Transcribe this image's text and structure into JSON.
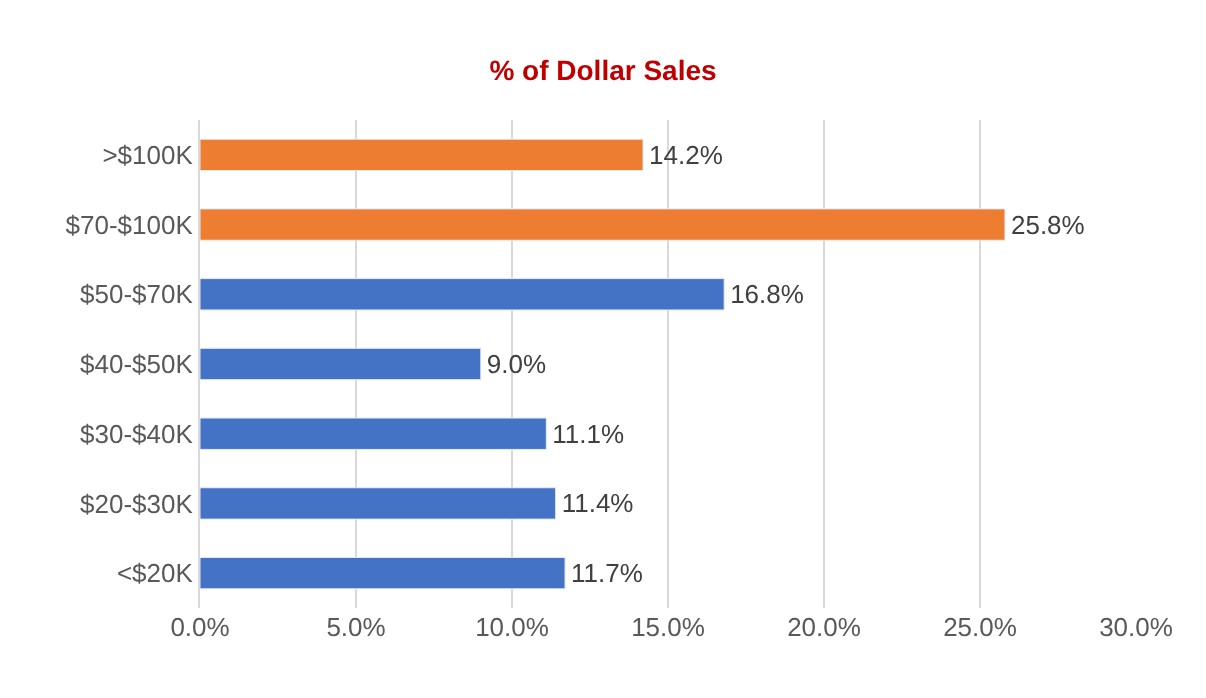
{
  "chart_data": {
    "type": "bar",
    "orientation": "horizontal",
    "title": "% of Dollar Sales",
    "categories": [
      ">$100K",
      "$70-$100K",
      "$50-$70K",
      "$40-$50K",
      "$30-$40K",
      "$20-$30K",
      "<$20K"
    ],
    "values": [
      14.2,
      25.8,
      16.8,
      9.0,
      11.1,
      11.4,
      11.7
    ],
    "colors": [
      "#ed7d31",
      "#ed7d31",
      "#4472c4",
      "#4472c4",
      "#4472c4",
      "#4472c4",
      "#4472c4"
    ],
    "value_labels": [
      "14.2%",
      "25.8%",
      "16.8%",
      "9.0%",
      "11.1%",
      "11.4%",
      "11.7%"
    ],
    "xlim": [
      0,
      30
    ],
    "xticks": [
      {
        "value": 0,
        "label": "0.0%"
      },
      {
        "value": 5,
        "label": "5.0%"
      },
      {
        "value": 10,
        "label": "10.0%"
      },
      {
        "value": 15,
        "label": "15.0%"
      },
      {
        "value": 20,
        "label": "20.0%"
      },
      {
        "value": 25,
        "label": "25.0%"
      },
      {
        "value": 30,
        "label": "30.0%"
      }
    ],
    "grid": "x"
  }
}
